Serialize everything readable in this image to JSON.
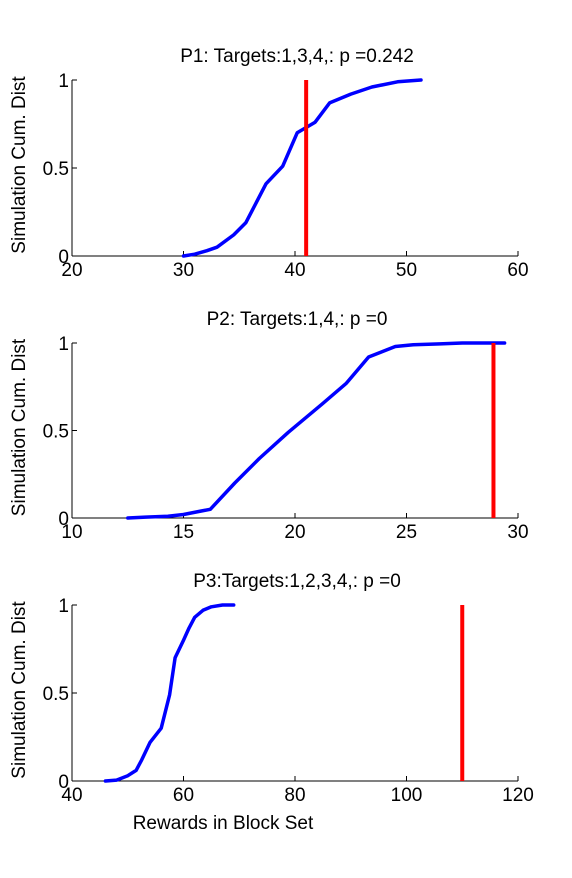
{
  "chart_data": [
    {
      "type": "line",
      "title": "P1: Targets:1,3,4,: p =0.242",
      "xlabel": "",
      "ylabel": "Simulation Cum. Dist",
      "xlim": [
        20,
        60
      ],
      "ylim": [
        0,
        1
      ],
      "xticks": [
        20,
        30,
        40,
        50,
        60
      ],
      "yticks": [
        0,
        0.5,
        1
      ],
      "xtick_labels": [
        "20",
        "30",
        "40",
        "50",
        "60"
      ],
      "ytick_labels": [
        "0",
        "0.5",
        "1"
      ],
      "grid": false,
      "series": [
        {
          "color": "#0000ff",
          "x": [
            30,
            31,
            32.1,
            33,
            34.5,
            35.6,
            37.4,
            38.9,
            40.2,
            41.8,
            43.1,
            45,
            46.9,
            49.2,
            51.3
          ],
          "y": [
            0,
            0.01,
            0.03,
            0.05,
            0.12,
            0.19,
            0.41,
            0.51,
            0.7,
            0.76,
            0.87,
            0.92,
            0.96,
            0.99,
            1.0
          ]
        }
      ],
      "vline": {
        "x": 41,
        "color": "#ff0000"
      }
    },
    {
      "type": "line",
      "title": "P2: Targets:1,4,: p =0",
      "xlabel": "",
      "ylabel": "Simulation Cum. Dist",
      "xlim": [
        10,
        30
      ],
      "ylim": [
        0,
        1
      ],
      "xticks": [
        10,
        15,
        20,
        25,
        30
      ],
      "yticks": [
        0,
        0.5,
        1
      ],
      "xtick_labels": [
        "10",
        "15",
        "20",
        "25",
        "30"
      ],
      "ytick_labels": [
        "0",
        "0.5",
        "1"
      ],
      "grid": false,
      "series": [
        {
          "color": "#0000ff",
          "x": [
            12.5,
            13.3,
            14.3,
            15,
            15.8,
            16.2,
            17.3,
            18.4,
            19.7,
            21.2,
            22.3,
            23.3,
            24.5,
            25.3,
            26.5,
            27.5,
            28.6,
            29.4
          ],
          "y": [
            0,
            0.005,
            0.01,
            0.02,
            0.04,
            0.05,
            0.2,
            0.34,
            0.49,
            0.65,
            0.77,
            0.92,
            0.98,
            0.99,
            0.995,
            1.0,
            1.0,
            1.0
          ]
        }
      ],
      "vline": {
        "x": 28.9,
        "color": "#ff0000"
      }
    },
    {
      "type": "line",
      "title": "P3:Targets:1,2,3,4,: p =0",
      "xlabel": "Rewards in Block Set",
      "ylabel": "Simulation Cum. Dist",
      "xlim": [
        40,
        120
      ],
      "ylim": [
        0,
        1
      ],
      "xticks": [
        40,
        60,
        80,
        100,
        120
      ],
      "yticks": [
        0,
        0.5,
        1
      ],
      "xtick_labels": [
        "40",
        "60",
        "80",
        "100",
        "120"
      ],
      "ytick_labels": [
        "0",
        "0.5",
        "1"
      ],
      "grid": false,
      "series": [
        {
          "color": "#0000ff",
          "x": [
            46,
            48,
            50,
            51.5,
            52.5,
            54,
            56,
            57.5,
            58.5,
            60,
            61,
            62,
            63.5,
            65,
            67,
            69
          ],
          "y": [
            0,
            0.005,
            0.03,
            0.06,
            0.12,
            0.22,
            0.3,
            0.49,
            0.7,
            0.8,
            0.87,
            0.93,
            0.97,
            0.99,
            1.0,
            1.0
          ]
        }
      ],
      "vline": {
        "x": 110,
        "color": "#ff0000"
      }
    }
  ]
}
